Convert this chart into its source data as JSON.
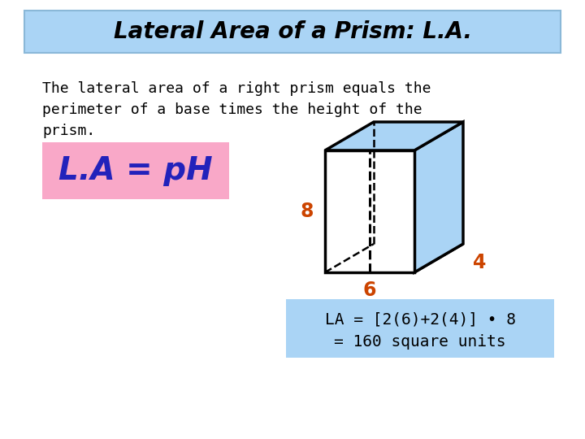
{
  "title": "Lateral Area of a Prism: L.A.",
  "title_bg": "#aad4f5",
  "title_border": "#8ab8d8",
  "body_bg": "#ffffff",
  "desc_line1": "The lateral area of a right prism equals the",
  "desc_line2": "perimeter of a base times the height of the",
  "desc_line3": "prism.",
  "formula": "L.A = pH",
  "formula_bg": "#f9a8c8",
  "formula_color": "#2222bb",
  "calc_line1": "LA = [2(6)+2(4)] • 8",
  "calc_line2": "= 160 square units",
  "calc_bg": "#aad4f5",
  "calc_color": "#000000",
  "dim_color": "#cc4400",
  "prism_face_color": "#aad4f5",
  "prism_edge_color": "#000000",
  "dim_8": "8",
  "dim_4": "4",
  "dim_6": "6"
}
